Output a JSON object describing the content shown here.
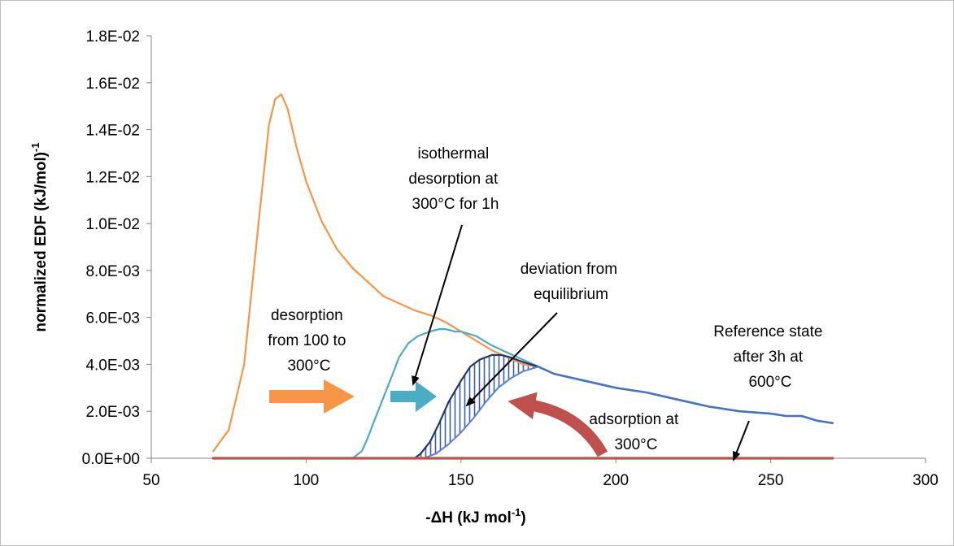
{
  "chart_data": {
    "type": "line",
    "title": "",
    "xlabel": "-ΔH (kJ mol",
    "xlabel_sup": "-1",
    "xlabel_tail": ")",
    "ylabel": "normalized EDF (kJ/mol)",
    "ylabel_sup": "-1",
    "xlim": [
      50,
      300
    ],
    "ylim": [
      0,
      0.018
    ],
    "x_ticks": [
      "50",
      "100",
      "150",
      "200",
      "250",
      "300"
    ],
    "y_ticks": [
      "0.0E+00",
      "2.0E-03",
      "4.0E-03",
      "6.0E-03",
      "8.0E-03",
      "1.0E-02",
      "1.2E-02",
      "1.4E-02",
      "1.6E-02",
      "1.8E-02"
    ],
    "grid": false,
    "legend": "none",
    "series": [
      {
        "color": "#f79646",
        "x": [
          70,
          75,
          80,
          85,
          88,
          90,
          92,
          94,
          97,
          100,
          105,
          110,
          115,
          120,
          125,
          130,
          135,
          140,
          145,
          150,
          155,
          160,
          165,
          170,
          175
        ],
        "y": [
          0.0003,
          0.0012,
          0.004,
          0.0105,
          0.0142,
          0.0153,
          0.0155,
          0.0149,
          0.0132,
          0.0118,
          0.0101,
          0.0089,
          0.0081,
          0.0075,
          0.0069,
          0.0066,
          0.0063,
          0.0061,
          0.0058,
          0.0054,
          0.005,
          0.0046,
          0.0043,
          0.004,
          0.0039
        ]
      },
      {
        "color": "#4bacc6",
        "x": [
          115,
          118,
          120,
          122,
          125,
          128,
          130,
          133,
          136,
          140,
          143,
          145,
          148,
          150,
          155,
          160,
          165,
          170,
          175
        ],
        "y": [
          0.0,
          0.0003,
          0.0009,
          0.0016,
          0.0026,
          0.0036,
          0.0043,
          0.0049,
          0.0052,
          0.0054,
          0.0055,
          0.0055,
          0.0054,
          0.0054,
          0.0052,
          0.0048,
          0.0045,
          0.0042,
          0.0039
        ]
      },
      {
        "color": "#4472c4",
        "x": [
          175,
          180,
          190,
          200,
          210,
          220,
          230,
          240,
          250,
          255,
          260,
          265,
          270
        ],
        "y": [
          0.0039,
          0.0036,
          0.0033,
          0.003,
          0.0028,
          0.0025,
          0.0022,
          0.002,
          0.0019,
          0.0018,
          0.0018,
          0.0016,
          0.0015
        ]
      },
      {
        "color": "#1f3864",
        "x": [
          135,
          137,
          140,
          143,
          146,
          150,
          153,
          156,
          160,
          163,
          166,
          170,
          175
        ],
        "y": [
          0.0,
          0.0002,
          0.0007,
          0.0015,
          0.0024,
          0.0033,
          0.0039,
          0.0042,
          0.0044,
          0.0044,
          0.0043,
          0.0041,
          0.0039
        ]
      },
      {
        "color": "#5b7fd3",
        "x": [
          138,
          142,
          146,
          150,
          154,
          158,
          162,
          166,
          170,
          175
        ],
        "y": [
          0.0,
          0.0002,
          0.0006,
          0.0011,
          0.0017,
          0.0024,
          0.003,
          0.0034,
          0.0037,
          0.0039
        ]
      },
      {
        "color": "#c0504d",
        "x": [
          70,
          270
        ],
        "y": [
          0.0,
          0.0
        ]
      }
    ],
    "hatched_region_x": [
      135,
      175
    ],
    "annotations": [
      {
        "lines": [
          "isothermal",
          "desorption at",
          "300°C for 1h"
        ]
      },
      {
        "lines": [
          "deviation from",
          "equilibrium"
        ]
      },
      {
        "lines": [
          "desorption",
          "from 100 to",
          "300°C"
        ]
      },
      {
        "lines": [
          "Reference state",
          "after 3h at",
          "600°C"
        ]
      },
      {
        "lines": [
          "adsorption at",
          "300°C"
        ]
      }
    ],
    "arrow_colors": {
      "orange": "#f79646",
      "teal": "#4bacc6",
      "red": "#c0504d",
      "pointer": "#000000"
    }
  }
}
